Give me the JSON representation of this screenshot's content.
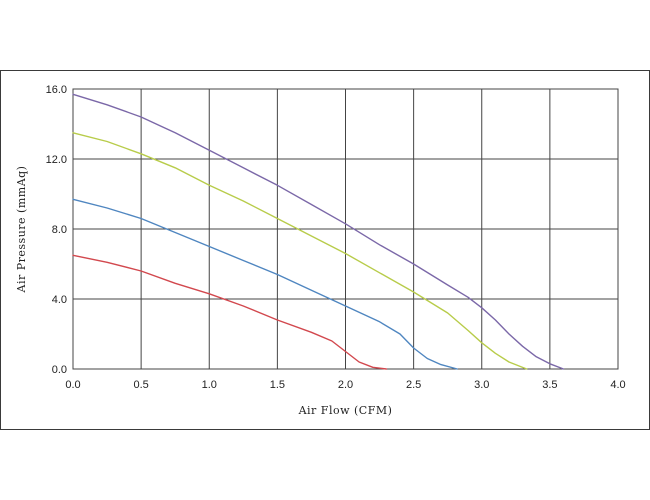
{
  "chart_data": {
    "type": "line",
    "xlabel": "Air Flow (CFM)",
    "ylabel": "Air Pressure (mmAq)",
    "xlim": [
      0,
      4.0
    ],
    "ylim": [
      0,
      16.0
    ],
    "x_ticks": [
      "0.0",
      "0.5",
      "1.0",
      "1.5",
      "2.0",
      "2.5",
      "3.0",
      "3.5",
      "4.0"
    ],
    "y_ticks": [
      "0.0",
      "4.0",
      "8.0",
      "12.0",
      "16.0"
    ],
    "x_tick_values": [
      0,
      0.5,
      1.0,
      1.5,
      2.0,
      2.5,
      3.0,
      3.5,
      4.0
    ],
    "y_tick_values": [
      0,
      4,
      8,
      12,
      16
    ],
    "grid": true,
    "series": [
      {
        "color": "#7b68a8",
        "x": [
          0,
          0.25,
          0.5,
          0.75,
          1.0,
          1.25,
          1.5,
          1.75,
          2.0,
          2.25,
          2.5,
          2.75,
          2.9,
          3.0,
          3.1,
          3.2,
          3.3,
          3.4,
          3.5,
          3.6
        ],
        "y": [
          15.7,
          15.1,
          14.4,
          13.5,
          12.5,
          11.5,
          10.5,
          9.4,
          8.3,
          7.1,
          6.0,
          4.8,
          4.1,
          3.5,
          2.8,
          2.0,
          1.3,
          0.7,
          0.3,
          0.0
        ]
      },
      {
        "color": "#b8cc4a",
        "x": [
          0,
          0.25,
          0.5,
          0.75,
          1.0,
          1.25,
          1.5,
          1.75,
          2.0,
          2.25,
          2.5,
          2.75,
          2.9,
          3.0,
          3.1,
          3.2,
          3.33
        ],
        "y": [
          13.5,
          13.0,
          12.3,
          11.5,
          10.5,
          9.6,
          8.6,
          7.6,
          6.6,
          5.5,
          4.4,
          3.2,
          2.2,
          1.5,
          0.9,
          0.4,
          0.0
        ]
      },
      {
        "color": "#4f86c0",
        "x": [
          0,
          0.25,
          0.5,
          0.75,
          1.0,
          1.25,
          1.5,
          1.75,
          2.0,
          2.25,
          2.4,
          2.5,
          2.6,
          2.7,
          2.82
        ],
        "y": [
          9.7,
          9.2,
          8.6,
          7.8,
          7.0,
          6.2,
          5.4,
          4.5,
          3.6,
          2.7,
          2.0,
          1.2,
          0.6,
          0.25,
          0.0
        ]
      },
      {
        "color": "#d2484e",
        "x": [
          0,
          0.25,
          0.5,
          0.75,
          1.0,
          1.25,
          1.5,
          1.75,
          1.9,
          2.0,
          2.1,
          2.2,
          2.3
        ],
        "y": [
          6.5,
          6.1,
          5.6,
          4.9,
          4.3,
          3.6,
          2.8,
          2.1,
          1.6,
          1.0,
          0.4,
          0.1,
          0.0
        ]
      }
    ]
  }
}
